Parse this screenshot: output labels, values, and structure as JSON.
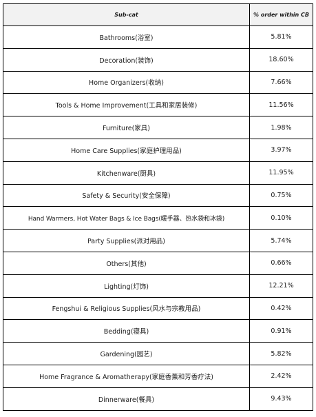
{
  "table": {
    "headers": [
      "Sub-cat",
      "% order within CB"
    ],
    "rows": [
      {
        "subcat": "Bathrooms(浴室)",
        "pct": "5.81%"
      },
      {
        "subcat": "Decoration(装饰)",
        "pct": "18.60%"
      },
      {
        "subcat": "Home Organizers(收纳)",
        "pct": "7.66%"
      },
      {
        "subcat": "Tools & Home Improvement(工具和家居装修)",
        "pct": "11.56%"
      },
      {
        "subcat": "Furniture(家具)",
        "pct": "1.98%"
      },
      {
        "subcat": "Home Care Supplies(家庭护理用品)",
        "pct": "3.97%"
      },
      {
        "subcat": "Kitchenware(厨具)",
        "pct": "11.95%"
      },
      {
        "subcat": "Safety & Security(安全保障)",
        "pct": "0.75%"
      },
      {
        "subcat": "Hand Warmers, Hot Water Bags & Ice Bags(暖手器、热水袋和冰袋)",
        "pct": "0.10%"
      },
      {
        "subcat": "Party Supplies(派对用品)",
        "pct": "5.74%"
      },
      {
        "subcat": "Others(其他)",
        "pct": "0.66%"
      },
      {
        "subcat": "Lighting(灯饰)",
        "pct": "12.21%"
      },
      {
        "subcat": "Fengshui & Religious Supplies(风水与宗教用品)",
        "pct": "0.42%"
      },
      {
        "subcat": "Bedding(寝具)",
        "pct": "0.91%"
      },
      {
        "subcat": "Gardening(园艺)",
        "pct": "5.82%"
      },
      {
        "subcat": "Home Fragrance & Aromatherapy(家庭香薰和芳香疗法)",
        "pct": "2.42%"
      },
      {
        "subcat": "Dinnerware(餐具)",
        "pct": "9.43%"
      }
    ]
  }
}
